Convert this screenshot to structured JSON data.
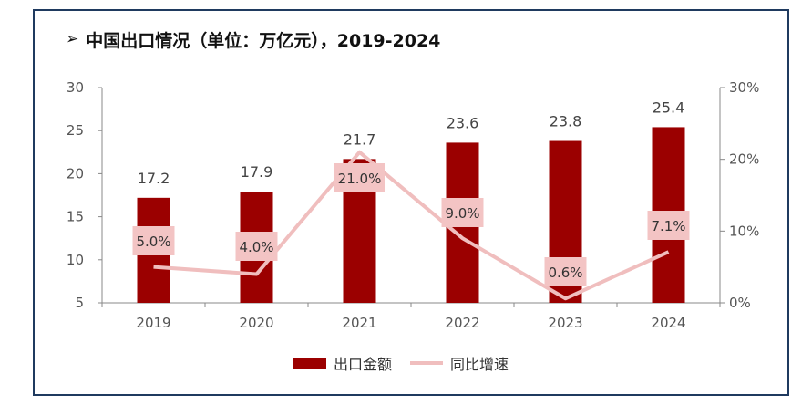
{
  "title": "中国出口情况（单位：万亿元），2019-2024",
  "title_marker": "➢",
  "colors": {
    "bar": "#9b0000",
    "line": "#f0bebe",
    "label_box": "#f3c4c4",
    "axis": "#888888"
  },
  "chart_data": {
    "type": "bar",
    "categories": [
      "2019",
      "2020",
      "2021",
      "2022",
      "2023",
      "2024"
    ],
    "series": [
      {
        "name": "出口金额",
        "type": "bar",
        "axis": "left",
        "values": [
          17.2,
          17.9,
          21.7,
          23.6,
          23.8,
          25.4
        ]
      },
      {
        "name": "同比增速",
        "type": "line",
        "axis": "right",
        "values": [
          5.0,
          4.0,
          21.0,
          9.0,
          0.6,
          7.1
        ]
      }
    ],
    "y_left": {
      "min": 5,
      "max": 30,
      "ticks": [
        5,
        10,
        15,
        20,
        25,
        30
      ]
    },
    "y_right": {
      "min": 0,
      "max": 30,
      "ticks": [
        "0%",
        "10%",
        "20%",
        "30%"
      ],
      "tick_values": [
        0,
        10,
        20,
        30
      ]
    },
    "bar_labels": [
      "17.2",
      "17.9",
      "21.7",
      "23.6",
      "23.8",
      "25.4"
    ],
    "line_labels": [
      "5.0%",
      "4.0%",
      "21.0%",
      "9.0%",
      "0.6%",
      "7.1%"
    ],
    "legend_position": "bottom"
  }
}
